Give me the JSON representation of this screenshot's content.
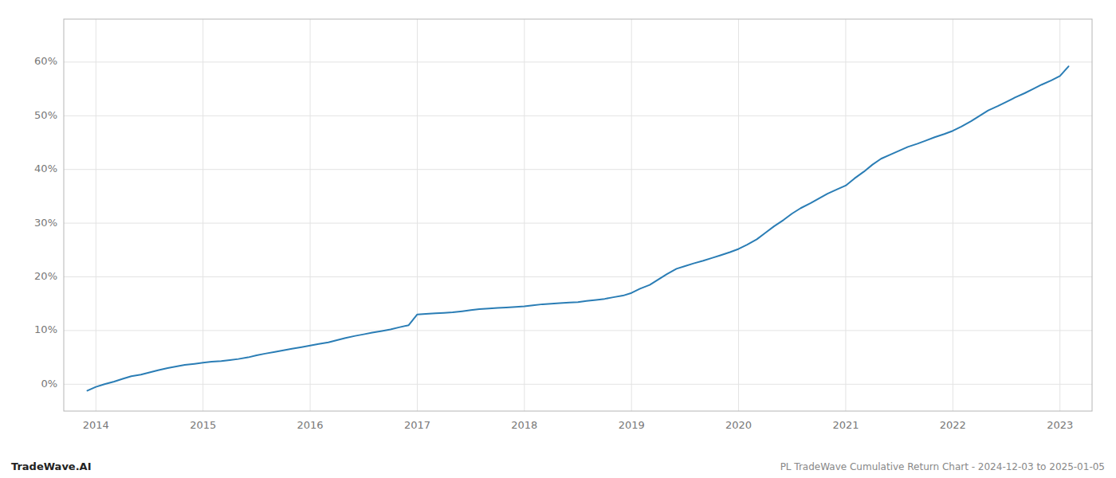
{
  "chart_data": {
    "type": "line",
    "title": "PL TradeWave Cumulative Return Chart - 2024-12-03 to 2025-01-05",
    "annotations": [
      "TradeWave.AI"
    ],
    "color": "#2a7db5",
    "grid": true,
    "x": [
      2013.92,
      2014.0,
      2014.08,
      2014.17,
      2014.25,
      2014.33,
      2014.42,
      2014.5,
      2014.58,
      2014.67,
      2014.75,
      2014.83,
      2014.92,
      2015.0,
      2015.08,
      2015.17,
      2015.25,
      2015.33,
      2015.42,
      2015.5,
      2015.58,
      2015.67,
      2015.75,
      2015.83,
      2015.92,
      2016.0,
      2016.08,
      2016.17,
      2016.25,
      2016.33,
      2016.42,
      2016.5,
      2016.58,
      2016.67,
      2016.75,
      2016.83,
      2016.92,
      2017.0,
      2017.08,
      2017.17,
      2017.25,
      2017.33,
      2017.42,
      2017.5,
      2017.58,
      2017.67,
      2017.75,
      2017.83,
      2017.92,
      2018.0,
      2018.08,
      2018.17,
      2018.25,
      2018.33,
      2018.42,
      2018.5,
      2018.58,
      2018.67,
      2018.75,
      2018.83,
      2018.92,
      2019.0,
      2019.08,
      2019.17,
      2019.25,
      2019.33,
      2019.42,
      2019.5,
      2019.58,
      2019.67,
      2019.75,
      2019.83,
      2019.92,
      2020.0,
      2020.08,
      2020.17,
      2020.25,
      2020.33,
      2020.42,
      2020.5,
      2020.58,
      2020.67,
      2020.75,
      2020.83,
      2020.92,
      2021.0,
      2021.08,
      2021.17,
      2021.25,
      2021.33,
      2021.42,
      2021.5,
      2021.58,
      2021.67,
      2021.75,
      2021.83,
      2021.92,
      2022.0,
      2022.08,
      2022.17,
      2022.25,
      2022.33,
      2022.42,
      2022.5,
      2022.58,
      2022.67,
      2022.75,
      2022.83,
      2022.92,
      2023.0,
      2023.08
    ],
    "values": [
      -0.012,
      -0.005,
      0.0,
      0.005,
      0.01,
      0.015,
      0.018,
      0.022,
      0.026,
      0.03,
      0.033,
      0.036,
      0.038,
      0.04,
      0.042,
      0.043,
      0.045,
      0.047,
      0.05,
      0.054,
      0.057,
      0.06,
      0.063,
      0.066,
      0.069,
      0.072,
      0.075,
      0.078,
      0.082,
      0.086,
      0.09,
      0.093,
      0.096,
      0.099,
      0.102,
      0.106,
      0.11,
      0.13,
      0.131,
      0.132,
      0.133,
      0.134,
      0.136,
      0.138,
      0.14,
      0.141,
      0.142,
      0.143,
      0.144,
      0.145,
      0.147,
      0.149,
      0.15,
      0.151,
      0.152,
      0.153,
      0.155,
      0.157,
      0.159,
      0.162,
      0.165,
      0.17,
      0.178,
      0.185,
      0.195,
      0.205,
      0.215,
      0.22,
      0.225,
      0.23,
      0.235,
      0.24,
      0.246,
      0.252,
      0.26,
      0.27,
      0.282,
      0.294,
      0.306,
      0.318,
      0.328,
      0.337,
      0.346,
      0.355,
      0.363,
      0.37,
      0.383,
      0.396,
      0.409,
      0.42,
      0.428,
      0.435,
      0.442,
      0.448,
      0.454,
      0.46,
      0.466,
      0.472,
      0.48,
      0.49,
      0.5,
      0.51,
      0.518,
      0.526,
      0.534,
      0.542,
      0.55,
      0.558,
      0.566,
      0.574,
      0.592
    ],
    "xlim": [
      2013.7,
      2023.3
    ],
    "xticks": [
      2014,
      2015,
      2016,
      2017,
      2018,
      2019,
      2020,
      2021,
      2022,
      2023
    ],
    "ylim": [
      -0.05,
      0.68
    ],
    "yticks": [
      {
        "value": 0.0,
        "label": "0%"
      },
      {
        "value": 0.1,
        "label": "10%"
      },
      {
        "value": 0.2,
        "label": "20%"
      },
      {
        "value": 0.3,
        "label": "30%"
      },
      {
        "value": 0.4,
        "label": "40%"
      },
      {
        "value": 0.5,
        "label": "50%"
      },
      {
        "value": 0.6,
        "label": "60%"
      }
    ]
  }
}
